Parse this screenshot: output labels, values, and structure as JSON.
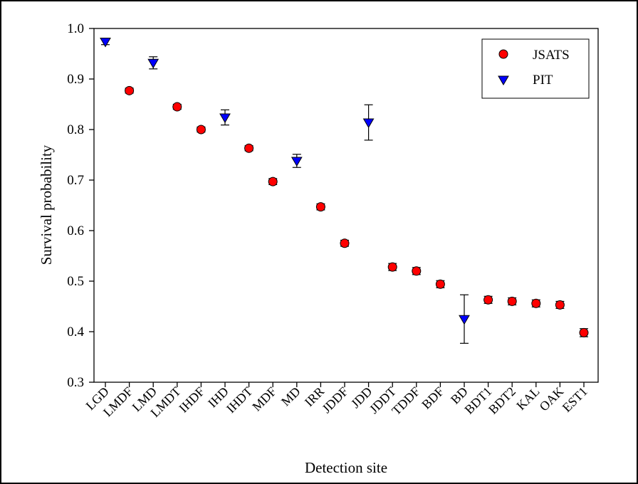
{
  "chart_data": {
    "type": "scatter",
    "xlabel": "Detection site",
    "ylabel": "Survival probability",
    "ylim": [
      0.3,
      1.0
    ],
    "yticks": [
      "0.3",
      "0.4",
      "0.5",
      "0.6",
      "0.7",
      "0.8",
      "0.9",
      "1.0"
    ],
    "categories": [
      "LGD",
      "LMDF",
      "LMD",
      "LMDT",
      "IHDF",
      "IHD",
      "IHDT",
      "MDF",
      "MD",
      "IRR",
      "JDDF",
      "JDD",
      "JDDT",
      "TDDF",
      "BDF",
      "BD",
      "BDT1",
      "BDT2",
      "KAL",
      "OAK",
      "EST1"
    ],
    "legend_position": "top-right",
    "grid": false,
    "series": [
      {
        "name": "JSATS",
        "marker": "circle",
        "color": "#ff0000",
        "points": [
          {
            "x": "LMDF",
            "y": 0.877,
            "err": 0.005
          },
          {
            "x": "LMDT",
            "y": 0.845,
            "err": 0.005
          },
          {
            "x": "IHDF",
            "y": 0.8,
            "err": 0.005
          },
          {
            "x": "IHDT",
            "y": 0.763,
            "err": 0.005
          },
          {
            "x": "MDF",
            "y": 0.697,
            "err": 0.006
          },
          {
            "x": "IRR",
            "y": 0.647,
            "err": 0.006
          },
          {
            "x": "JDDF",
            "y": 0.575,
            "err": 0.006
          },
          {
            "x": "JDDT",
            "y": 0.528,
            "err": 0.007
          },
          {
            "x": "TDDF",
            "y": 0.52,
            "err": 0.007
          },
          {
            "x": "BDF",
            "y": 0.494,
            "err": 0.007
          },
          {
            "x": "BDT1",
            "y": 0.463,
            "err": 0.007
          },
          {
            "x": "BDT2",
            "y": 0.46,
            "err": 0.007
          },
          {
            "x": "KAL",
            "y": 0.456,
            "err": 0.007
          },
          {
            "x": "OAK",
            "y": 0.453,
            "err": 0.007
          },
          {
            "x": "EST1",
            "y": 0.398,
            "err": 0.008
          }
        ]
      },
      {
        "name": "PIT",
        "marker": "triangle-down",
        "color": "#0000ff",
        "points": [
          {
            "x": "LGD",
            "y": 0.974,
            "err": 0.006
          },
          {
            "x": "LMD",
            "y": 0.932,
            "err": 0.012
          },
          {
            "x": "IHD",
            "y": 0.824,
            "err": 0.015
          },
          {
            "x": "MD",
            "y": 0.738,
            "err": 0.013
          },
          {
            "x": "JDD",
            "y": 0.814,
            "err": 0.035
          },
          {
            "x": "BD",
            "y": 0.425,
            "err": 0.048
          }
        ]
      }
    ]
  }
}
